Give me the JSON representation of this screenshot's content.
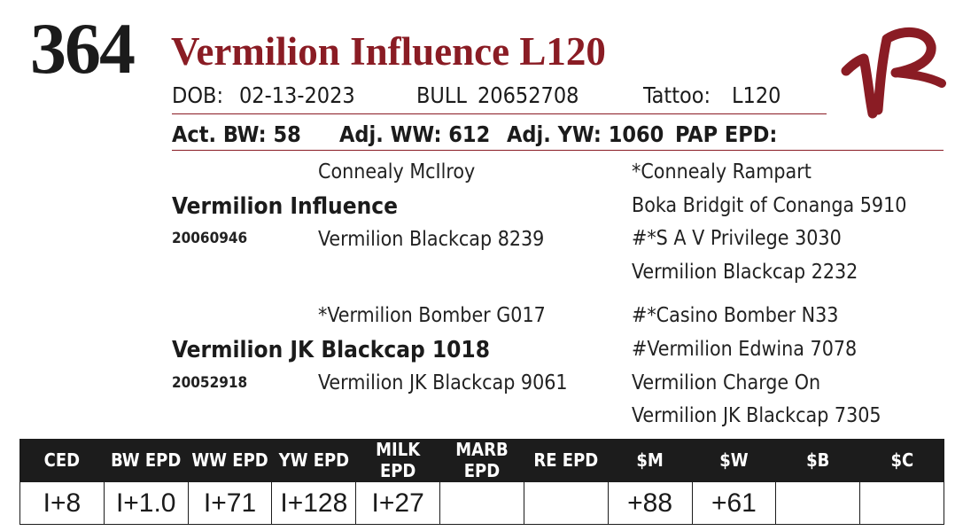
{
  "lot": {
    "number": "364"
  },
  "animal": {
    "name": "Vermilion Influence L120",
    "dob_label": "DOB:",
    "dob": "02-13-2023",
    "sex": "BULL",
    "reg_number": "20652708",
    "tattoo_label": "Tattoo:",
    "tattoo": "L120"
  },
  "logo": {
    "text": "VR",
    "color": "#8a1c24"
  },
  "stats": {
    "act_bw": "Act. BW: 58",
    "adj_ww": "Adj. WW: 612",
    "adj_yw": "Adj. YW: 1060",
    "pap_epd": "PAP EPD:"
  },
  "pedigree": {
    "sire": {
      "name": "Vermilion Influence",
      "reg": "20060946",
      "sire": "Connealy McIlroy",
      "dam": "Vermilion Blackcap 8239",
      "sire_sire": "*Connealy Rampart",
      "sire_dam": "Boka Bridgit of Conanga 5910",
      "dam_sire": "#*S A V Privilege 3030",
      "dam_dam": "Vermilion Blackcap 2232"
    },
    "dam": {
      "name": "Vermilion JK Blackcap 1018",
      "reg": "20052918",
      "sire": "*Vermilion Bomber G017",
      "dam": "Vermilion JK Blackcap 9061",
      "sire_sire": "#*Casino Bomber N33",
      "sire_dam": "#Vermilion Edwina 7078",
      "dam_sire": "Vermilion Charge On",
      "dam_dam": "Vermilion JK Blackcap 7305"
    }
  },
  "epd": {
    "headers": [
      "CED",
      "BW EPD",
      "WW EPD",
      "YW EPD",
      "MILK EPD",
      "MARB EPD",
      "RE EPD",
      "$M",
      "$W",
      "$B",
      "$C"
    ],
    "values": [
      "I+8",
      "I+1.0",
      "I+71",
      "I+128",
      "I+27",
      "",
      "",
      "+88",
      "+61",
      "",
      ""
    ]
  },
  "colors": {
    "accent": "#8a1c24",
    "header_bg": "#1c1c1c"
  }
}
